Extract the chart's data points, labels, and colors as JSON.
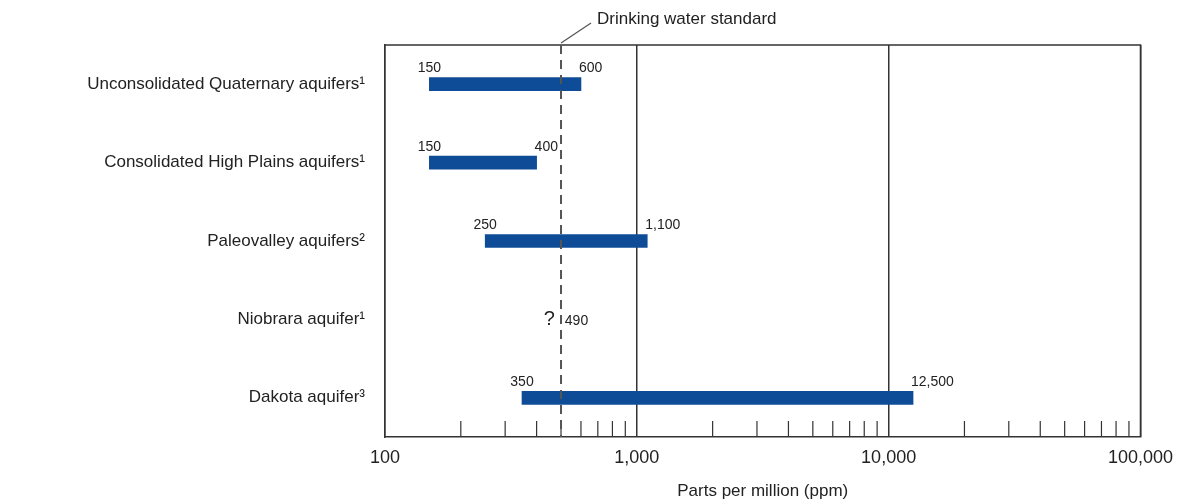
{
  "chart_data": {
    "type": "bar",
    "orientation": "horizontal",
    "categories": [
      "Unconsolidated Quaternary aquifers¹",
      "Consolidated High Plains aquifers¹",
      "Paleovalley aquifers²",
      "Niobrara aquifer¹",
      "Dakota aquifer³"
    ],
    "base": [
      150,
      150,
      250,
      null,
      350
    ],
    "values": [
      450,
      250,
      850,
      null,
      12150
    ],
    "color": "#0f4c97",
    "log": "x",
    "xlim": [
      100,
      100000
    ],
    "xticks": [
      100,
      {
        "value": 200,
        "label": null
      },
      {
        "value": 300,
        "label": null
      },
      {
        "value": 400,
        "label": null
      },
      {
        "value": 500,
        "label": null
      },
      {
        "value": 600,
        "label": null
      },
      {
        "value": 700,
        "label": null
      },
      {
        "value": 800,
        "label": null
      },
      {
        "value": 900,
        "label": null
      },
      {
        "value": 1000,
        "label": "1,000"
      },
      {
        "value": 2000,
        "label": null
      },
      {
        "value": 3000,
        "label": null
      },
      {
        "value": 4000,
        "label": null
      },
      {
        "value": 5000,
        "label": null
      },
      {
        "value": 6000,
        "label": null
      },
      {
        "value": 7000,
        "label": null
      },
      {
        "value": 8000,
        "label": null
      },
      {
        "value": 9000,
        "label": null
      },
      {
        "value": 10000,
        "label": "10,000"
      },
      {
        "value": 20000,
        "label": null
      },
      {
        "value": 30000,
        "label": null
      },
      {
        "value": 40000,
        "label": null
      },
      {
        "value": 50000,
        "label": null
      },
      {
        "value": 60000,
        "label": null
      },
      {
        "value": 70000,
        "label": null
      },
      {
        "value": 80000,
        "label": null
      },
      {
        "value": 90000,
        "label": null
      },
      {
        "value": 100000,
        "label": "100,000"
      }
    ],
    "xlabel": "Parts per million (ppm)",
    "grid": "x",
    "ref_lines": [
      {
        "axis": "x",
        "value": 500,
        "label": "Drinking water standard",
        "line_style": "dashed",
        "color": "#555555"
      }
    ],
    "annotations": [
      {
        "text": "150",
        "x": 150,
        "y": "Unconsolidated Quaternary aquifers¹"
      },
      {
        "text": "600",
        "x": 600,
        "y": "Unconsolidated Quaternary aquifers¹"
      },
      {
        "text": "150",
        "x": 150,
        "y": "Consolidated High Plains aquifers¹"
      },
      {
        "text": "400",
        "x": 400,
        "y": "Consolidated High Plains aquifers¹"
      },
      {
        "text": "250",
        "x": 250,
        "y": "Paleovalley aquifers²"
      },
      {
        "text": "1,100",
        "x": 1100,
        "y": "Paleovalley aquifers²"
      },
      {
        "text": "?",
        "x": 490,
        "y": "Niobrara aquifer¹"
      },
      {
        "text": "490",
        "x": 490,
        "y": "Niobrara aquifer¹"
      },
      {
        "text": "350",
        "x": 350,
        "y": "Dakota aquifer³"
      },
      {
        "text": "12,500",
        "x": 12500,
        "y": "Dakota aquifer³"
      }
    ]
  }
}
